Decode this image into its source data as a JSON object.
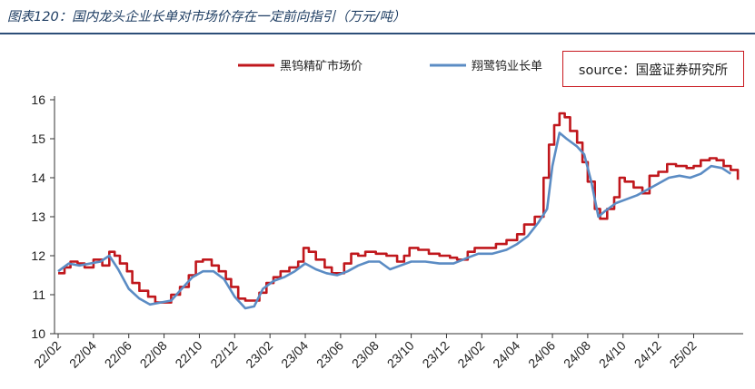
{
  "title": "图表120：国内龙头企业长单对市场价存在一定前向指引（万元/吨）",
  "source": "source：国盛证券研究所",
  "chart_data": {
    "type": "line",
    "title": "",
    "xlabel": "",
    "ylabel": "",
    "ylim": [
      10,
      16
    ],
    "yticks": [
      10,
      11,
      12,
      13,
      14,
      15,
      16
    ],
    "categories": [
      "22/02",
      "22/04",
      "22/06",
      "22/08",
      "22/10",
      "22/12",
      "23/02",
      "23/04",
      "23/06",
      "23/08",
      "23/10",
      "23/12",
      "24/02",
      "24/04",
      "24/06",
      "24/08",
      "24/10",
      "24/12",
      "25/02"
    ],
    "legend_position": "top",
    "grid": false,
    "series": [
      {
        "name": "黑钨精矿市场价",
        "color": "#c0171c",
        "shape": "step",
        "points": [
          [
            0,
            11.55
          ],
          [
            0.18,
            11.7
          ],
          [
            0.35,
            11.85
          ],
          [
            0.55,
            11.8
          ],
          [
            0.75,
            11.7
          ],
          [
            1.0,
            11.9
          ],
          [
            1.25,
            11.75
          ],
          [
            1.45,
            12.1
          ],
          [
            1.6,
            12.0
          ],
          [
            1.75,
            11.8
          ],
          [
            1.95,
            11.6
          ],
          [
            2.1,
            11.3
          ],
          [
            2.3,
            11.1
          ],
          [
            2.55,
            10.95
          ],
          [
            2.75,
            10.8
          ],
          [
            3.0,
            10.8
          ],
          [
            3.2,
            11.0
          ],
          [
            3.45,
            11.2
          ],
          [
            3.7,
            11.5
          ],
          [
            3.9,
            11.85
          ],
          [
            4.1,
            11.9
          ],
          [
            4.35,
            11.75
          ],
          [
            4.55,
            11.6
          ],
          [
            4.75,
            11.4
          ],
          [
            4.9,
            11.2
          ],
          [
            5.1,
            10.9
          ],
          [
            5.3,
            10.85
          ],
          [
            5.5,
            10.85
          ],
          [
            5.7,
            11.05
          ],
          [
            5.9,
            11.3
          ],
          [
            6.1,
            11.45
          ],
          [
            6.3,
            11.6
          ],
          [
            6.55,
            11.7
          ],
          [
            6.8,
            11.85
          ],
          [
            6.95,
            12.2
          ],
          [
            7.1,
            12.1
          ],
          [
            7.3,
            11.9
          ],
          [
            7.55,
            11.7
          ],
          [
            7.75,
            11.55
          ],
          [
            7.95,
            11.55
          ],
          [
            8.1,
            11.8
          ],
          [
            8.3,
            12.05
          ],
          [
            8.5,
            12.0
          ],
          [
            8.7,
            12.1
          ],
          [
            9.0,
            12.05
          ],
          [
            9.3,
            12.0
          ],
          [
            9.6,
            11.85
          ],
          [
            9.8,
            12.0
          ],
          [
            9.95,
            12.2
          ],
          [
            10.2,
            12.15
          ],
          [
            10.5,
            12.05
          ],
          [
            10.8,
            12.0
          ],
          [
            11.1,
            11.95
          ],
          [
            11.3,
            11.9
          ],
          [
            11.6,
            12.1
          ],
          [
            11.8,
            12.2
          ],
          [
            12.1,
            12.2
          ],
          [
            12.4,
            12.3
          ],
          [
            12.7,
            12.4
          ],
          [
            13.0,
            12.55
          ],
          [
            13.2,
            12.8
          ],
          [
            13.5,
            13.0
          ],
          [
            13.75,
            14.0
          ],
          [
            13.9,
            14.85
          ],
          [
            14.05,
            15.35
          ],
          [
            14.2,
            15.65
          ],
          [
            14.35,
            15.55
          ],
          [
            14.5,
            15.2
          ],
          [
            14.7,
            14.9
          ],
          [
            14.85,
            14.4
          ],
          [
            15.0,
            13.9
          ],
          [
            15.2,
            13.2
          ],
          [
            15.35,
            12.95
          ],
          [
            15.55,
            13.2
          ],
          [
            15.75,
            13.5
          ],
          [
            15.9,
            14.0
          ],
          [
            16.05,
            13.9
          ],
          [
            16.3,
            13.75
          ],
          [
            16.55,
            13.6
          ],
          [
            16.75,
            14.05
          ],
          [
            17.0,
            14.15
          ],
          [
            17.25,
            14.35
          ],
          [
            17.5,
            14.3
          ],
          [
            17.8,
            14.25
          ],
          [
            18.0,
            14.3
          ],
          [
            18.2,
            14.45
          ],
          [
            18.45,
            14.5
          ],
          [
            18.65,
            14.45
          ],
          [
            18.85,
            14.3
          ],
          [
            19.05,
            14.2
          ],
          [
            19.25,
            13.95
          ]
        ]
      },
      {
        "name": "翔鹭钨业长单",
        "color": "#5b8cc4",
        "shape": "line",
        "points": [
          [
            0,
            11.6
          ],
          [
            0.3,
            11.8
          ],
          [
            0.6,
            11.75
          ],
          [
            0.9,
            11.8
          ],
          [
            1.2,
            11.85
          ],
          [
            1.45,
            12.0
          ],
          [
            1.7,
            11.65
          ],
          [
            2.0,
            11.15
          ],
          [
            2.3,
            10.9
          ],
          [
            2.6,
            10.75
          ],
          [
            2.9,
            10.8
          ],
          [
            3.2,
            10.85
          ],
          [
            3.5,
            11.15
          ],
          [
            3.8,
            11.45
          ],
          [
            4.1,
            11.6
          ],
          [
            4.4,
            11.6
          ],
          [
            4.7,
            11.4
          ],
          [
            5.0,
            10.95
          ],
          [
            5.3,
            10.65
          ],
          [
            5.55,
            10.7
          ],
          [
            5.8,
            11.15
          ],
          [
            6.1,
            11.35
          ],
          [
            6.4,
            11.45
          ],
          [
            6.7,
            11.6
          ],
          [
            7.0,
            11.8
          ],
          [
            7.3,
            11.65
          ],
          [
            7.6,
            11.55
          ],
          [
            7.9,
            11.5
          ],
          [
            8.2,
            11.6
          ],
          [
            8.5,
            11.75
          ],
          [
            8.8,
            11.85
          ],
          [
            9.1,
            11.85
          ],
          [
            9.4,
            11.65
          ],
          [
            9.7,
            11.75
          ],
          [
            10.0,
            11.85
          ],
          [
            10.4,
            11.85
          ],
          [
            10.8,
            11.8
          ],
          [
            11.2,
            11.8
          ],
          [
            11.6,
            11.95
          ],
          [
            11.9,
            12.05
          ],
          [
            12.3,
            12.05
          ],
          [
            12.7,
            12.15
          ],
          [
            13.0,
            12.3
          ],
          [
            13.3,
            12.5
          ],
          [
            13.6,
            12.85
          ],
          [
            13.85,
            13.2
          ],
          [
            14.0,
            14.3
          ],
          [
            14.2,
            15.15
          ],
          [
            14.4,
            15.0
          ],
          [
            14.7,
            14.8
          ],
          [
            14.9,
            14.6
          ],
          [
            15.1,
            13.9
          ],
          [
            15.3,
            13.0
          ],
          [
            15.5,
            13.15
          ],
          [
            15.8,
            13.35
          ],
          [
            16.1,
            13.45
          ],
          [
            16.4,
            13.55
          ],
          [
            16.7,
            13.7
          ],
          [
            17.0,
            13.85
          ],
          [
            17.3,
            14.0
          ],
          [
            17.6,
            14.05
          ],
          [
            17.9,
            14.0
          ],
          [
            18.2,
            14.1
          ],
          [
            18.5,
            14.3
          ],
          [
            18.8,
            14.25
          ],
          [
            19.05,
            14.1
          ]
        ]
      }
    ]
  }
}
